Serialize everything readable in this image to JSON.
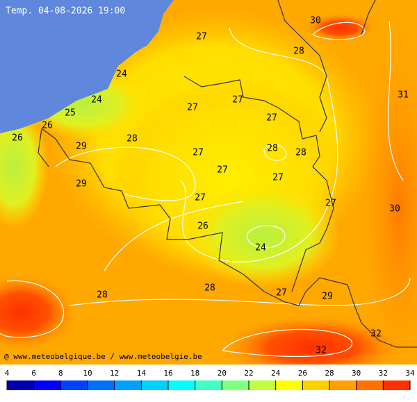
{
  "title": "Temp. 04-08-2026 19:00",
  "labels": [
    30,
    27,
    28,
    24,
    31,
    24,
    27,
    27,
    25,
    27,
    26,
    28,
    26,
    29,
    28,
    28,
    27,
    27,
    27,
    29,
    27,
    27,
    30,
    26,
    24,
    28,
    27,
    28,
    29,
    32,
    32
  ],
  "credit": "@ www.meteobelgique.be / www.meteobelgie.be",
  "scale": {
    "ticks": [
      4,
      6,
      8,
      10,
      12,
      14,
      16,
      18,
      20,
      22,
      24,
      26,
      28,
      30,
      32,
      34
    ]
  }
}
